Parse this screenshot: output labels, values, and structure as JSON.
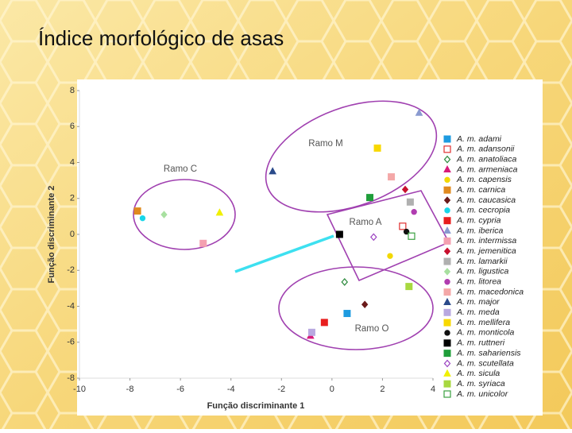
{
  "title": "Índice morfológico de asas",
  "chart_data": {
    "type": "scatter",
    "xlabel": "Função discriminante 1",
    "ylabel": "Função discriminante 2",
    "xlim": [
      -10,
      4
    ],
    "ylim": [
      -8,
      8
    ],
    "xticks": [
      -10,
      -8,
      -6,
      -4,
      -2,
      0,
      2,
      4
    ],
    "yticks": [
      -8,
      -6,
      -4,
      -2,
      0,
      2,
      4,
      6,
      8
    ],
    "annotations": [
      "Ramo M",
      "Ramo C",
      "Ramo A",
      "Ramo O"
    ],
    "series": [
      {
        "name": "A. m. adami",
        "color": "#1e9be0",
        "marker": "square",
        "filled": true,
        "x": [
          0.6
        ],
        "y": [
          -4.4
        ]
      },
      {
        "name": "A. m. adansonii",
        "color": "#e03030",
        "marker": "square",
        "filled": false,
        "x": [
          2.8
        ],
        "y": [
          0.45
        ]
      },
      {
        "name": "A. m. anatoliaca",
        "color": "#2e8b3e",
        "marker": "diamond",
        "filled": false,
        "x": [
          0.5
        ],
        "y": [
          -2.65
        ]
      },
      {
        "name": "A. m. armeniaca",
        "color": "#d81b7a",
        "marker": "triangle",
        "filled": true,
        "x": [
          -0.85
        ],
        "y": [
          -5.65
        ]
      },
      {
        "name": "A. m. capensis",
        "color": "#f2d800",
        "marker": "circle",
        "filled": true,
        "x": [
          2.3
        ],
        "y": [
          -1.2
        ]
      },
      {
        "name": "A. m. carnica",
        "color": "#e08a1e",
        "marker": "square",
        "filled": true,
        "x": [
          -7.7
        ],
        "y": [
          1.3
        ]
      },
      {
        "name": "A. m. caucasica",
        "color": "#6b1a1a",
        "marker": "diamond",
        "filled": true,
        "x": [
          1.3
        ],
        "y": [
          -3.9
        ]
      },
      {
        "name": "A. m. cecropia",
        "color": "#18d6e8",
        "marker": "circle",
        "filled": true,
        "x": [
          -7.5
        ],
        "y": [
          0.9
        ]
      },
      {
        "name": "A. m. cypria",
        "color": "#e81e1e",
        "marker": "square",
        "filled": true,
        "x": [
          -0.3
        ],
        "y": [
          -4.9
        ]
      },
      {
        "name": "A. m. iberica",
        "color": "#8a9ad0",
        "marker": "triangle",
        "filled": true,
        "x": [
          3.45
        ],
        "y": [
          6.75
        ]
      },
      {
        "name": "A. m. intermissa",
        "color": "#f4a0b0",
        "marker": "square",
        "filled": true,
        "x": [
          -5.1
        ],
        "y": [
          -0.5
        ]
      },
      {
        "name": "A. m. jemenitica",
        "color": "#c8102e",
        "marker": "diamond",
        "filled": true,
        "x": [
          2.9
        ],
        "y": [
          2.5
        ]
      },
      {
        "name": "A. m. lamarkii",
        "color": "#b0b0b0",
        "marker": "square",
        "filled": true,
        "x": [
          3.1
        ],
        "y": [
          1.8
        ]
      },
      {
        "name": "A. m. ligustica",
        "color": "#a8e0a0",
        "marker": "diamond",
        "filled": true,
        "x": [
          -6.65
        ],
        "y": [
          1.1
        ]
      },
      {
        "name": "A. m. litorea",
        "color": "#b03cb0",
        "marker": "circle",
        "filled": true,
        "x": [
          3.25
        ],
        "y": [
          1.25
        ]
      },
      {
        "name": "A. m. macedonica",
        "color": "#f4a8a8",
        "marker": "square",
        "filled": true,
        "x": [
          2.35
        ],
        "y": [
          3.2
        ]
      },
      {
        "name": "A. m. major",
        "color": "#2a4a8a",
        "marker": "triangle",
        "filled": true,
        "x": [
          -2.35
        ],
        "y": [
          3.5
        ]
      },
      {
        "name": "A. m. meda",
        "color": "#b8a8e0",
        "marker": "square",
        "filled": true,
        "x": [
          -0.8
        ],
        "y": [
          -5.45
        ]
      },
      {
        "name": "A. m. mellifera",
        "color": "#f8d800",
        "marker": "square",
        "filled": true,
        "x": [
          1.8
        ],
        "y": [
          4.8
        ]
      },
      {
        "name": "A. m. monticola",
        "color": "#111111",
        "marker": "circle",
        "filled": true,
        "x": [
          2.95
        ],
        "y": [
          0.15
        ]
      },
      {
        "name": "A. m. ruttneri",
        "color": "#000000",
        "marker": "square",
        "filled": true,
        "x": [
          0.3
        ],
        "y": [
          0.0
        ]
      },
      {
        "name": "A. m. sahariensis",
        "color": "#1f9e3a",
        "marker": "square",
        "filled": true,
        "x": [
          1.5
        ],
        "y": [
          2.05
        ]
      },
      {
        "name": "A. m. scutellata",
        "color": "#9a40c0",
        "marker": "diamond",
        "filled": false,
        "x": [
          1.65
        ],
        "y": [
          -0.15
        ]
      },
      {
        "name": "A. m. sicula",
        "color": "#f0f000",
        "marker": "triangle",
        "filled": true,
        "x": [
          -4.45
        ],
        "y": [
          1.2
        ]
      },
      {
        "name": "A. m. syriaca",
        "color": "#a8d840",
        "marker": "square",
        "filled": true,
        "x": [
          3.05
        ],
        "y": [
          -2.9
        ]
      },
      {
        "name": "A. m. unicolor",
        "color": "#3aa040",
        "marker": "square",
        "filled": false,
        "x": [
          3.15
        ],
        "y": [
          -0.1
        ]
      }
    ]
  }
}
